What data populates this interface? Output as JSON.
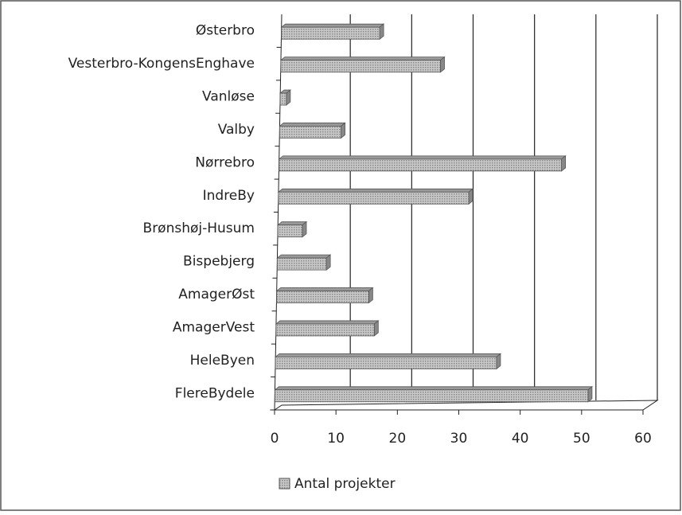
{
  "chart_data": {
    "type": "bar",
    "orientation": "horizontal",
    "categories": [
      "Østerbro",
      "Vesterbro-KongensEnghave",
      "Vanløse",
      "Valby",
      "Nørrebro",
      "IndreBy",
      "Brønshøj-Husum",
      "Bispebjerg",
      "AmagerØst",
      "AmagerVest",
      "HeleByen",
      "FlereBydele"
    ],
    "series": [
      {
        "name": "Antal projekter",
        "color": "#b4b4b4",
        "values": [
          16,
          26,
          1,
          10,
          46,
          31,
          4,
          8,
          15,
          16,
          36,
          51
        ]
      }
    ],
    "xlim": [
      0,
      60
    ],
    "xticks": [
      0,
      10,
      20,
      30,
      40,
      50,
      60
    ],
    "grid": true,
    "legend": "bottom"
  }
}
